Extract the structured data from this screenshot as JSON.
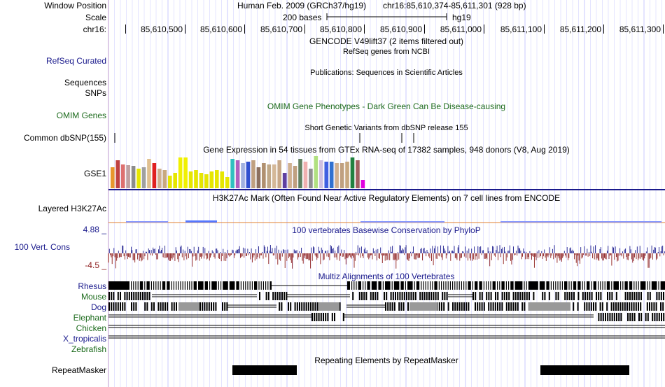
{
  "left_labels": {
    "window_position": "Window Position",
    "scale": "Scale",
    "chrom": "chr16:",
    "refseq": "RefSeq Curated",
    "sequences": "Sequences",
    "snps": "SNPs",
    "omim": "OMIM Genes",
    "common_dbsnp": "Common dbSNP(155)",
    "gse1": "GSE1",
    "h3k27ac": "Layered H3K27Ac",
    "phylop_max": "4.88 _",
    "cons_label": "100 Vert. Cons",
    "phylop_min": "-4.5 _",
    "rhesus": "Rhesus",
    "mouse": "Mouse",
    "dog": "Dog",
    "elephant": "Elephant",
    "chicken": "Chicken",
    "xtrop": "X_tropicalis",
    "zebrafish": "Zebrafish",
    "repeatmasker": "RepeatMasker"
  },
  "header": {
    "assembly": "Human Feb. 2009 (GRCh37/hg19)",
    "position": "chr16:85,610,374-85,611,301 (928 bp)",
    "scale_text": "200 bases",
    "db": "hg19"
  },
  "ruler": {
    "ticks": [
      "85,610,500",
      "85,610,600",
      "85,610,700",
      "85,610,800",
      "85,610,900",
      "85,611,000",
      "85,611,100",
      "85,611,200",
      "85,611,300"
    ]
  },
  "track_titles": {
    "gencode": "GENCODE V49lift37 (2 items filtered out)",
    "refseq": "RefSeq genes from NCBI",
    "publications": "Publications: Sequences in Scientific Articles",
    "omim": "OMIM Gene Phenotypes - Dark Green Can Be Disease-causing",
    "dbsnp": "Short Genetic Variants from dbSNP release 155",
    "gtex": "Gene Expression in 54 tissues from GTEx RNA-seq of 17382 samples, 948 donors (V8, Aug 2019)",
    "h3k27ac": "H3K27Ac Mark (Often Found Near Active Regulatory Elements) on 7 cell lines from ENCODE",
    "phylop": "100 vertebrates Basewise Conservation by PhyloP",
    "multiz": "Multiz Alignments of 100 Vertebrates",
    "repeats": "Repeating Elements by RepeatMasker"
  },
  "colors": {
    "gtex": [
      "#e8962c",
      "#c04040",
      "#dd7070",
      "#c0a0a0",
      "#8c8c8c",
      "#e6e600",
      "#a0a0a0",
      "#e0c090",
      "#e02020",
      "#d0b090",
      "#c8a880",
      "#e6e600",
      "#e6e600",
      "#f0f000",
      "#f0f000",
      "#e6e600",
      "#e6e600",
      "#e6e600",
      "#e6e600",
      "#e6e600",
      "#e6e600",
      "#e6e600",
      "#e6e600",
      "#30c0c0",
      "#b060c0",
      "#a0b0e0",
      "#3050d0",
      "#c0a080",
      "#8c7060",
      "#b09070",
      "#c0a888",
      "#d4b898",
      "#c8a888",
      "#6040a0",
      "#d0b090",
      "#c0a080",
      "#608060",
      "#f0b0b0",
      "#909090",
      "#b0e080",
      "#d0c0e0",
      "#4060e0",
      "#3070d0",
      "#d0b090",
      "#c0a080",
      "#c8a880",
      "#208040",
      "#a06060",
      "#e000e0"
    ],
    "phylop_pos": "#1a1a8c",
    "phylop_neg": "#8b1a1a",
    "h3k27ac": "#5577ff"
  }
}
